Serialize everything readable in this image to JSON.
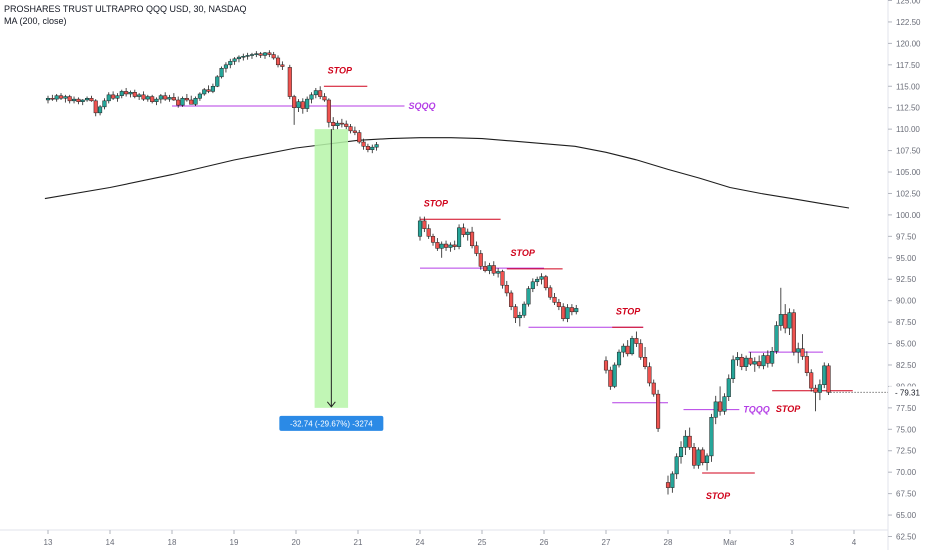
{
  "header": {
    "symbol_line": "PROSHARES TRUST ULTRAPRO QQQ USD, 30, NASDAQ",
    "indicator_line": "MA (200, close)"
  },
  "chart_data": {
    "type": "candlestick",
    "symbol": "PROSHARES TRUST ULTRAPRO QQQ USD",
    "interval": "30",
    "exchange": "NASDAQ",
    "indicator": "MA (200, close)",
    "ylim": [
      62.5,
      125.0
    ],
    "y_ticks": [
      "125.00",
      "122.50",
      "120.00",
      "117.50",
      "115.00",
      "112.50",
      "110.00",
      "107.50",
      "105.00",
      "102.50",
      "100.00",
      "97.50",
      "95.00",
      "92.50",
      "90.00",
      "87.50",
      "85.00",
      "82.50",
      "80.00",
      "77.50",
      "75.00",
      "72.50",
      "70.00",
      "67.50",
      "65.00",
      "62.50"
    ],
    "x_ticks": [
      "13",
      "14",
      "18",
      "19",
      "20",
      "21",
      "24",
      "25",
      "26",
      "27",
      "28",
      "Mar",
      "3",
      "4"
    ],
    "x_tick_pos": [
      0,
      1,
      2,
      3,
      4,
      5,
      6,
      7,
      8,
      9,
      10,
      11,
      12,
      13
    ],
    "grid": false,
    "colors": {
      "up": "#26a69a",
      "down": "#ef5350",
      "ma": "#1e1e1e",
      "stop": "#d0021b",
      "entry": "#b43ee6",
      "measure_fill": "#b6f5a8",
      "measure_label_bg": "#2b8ae6",
      "last_price_bg": "#ffffff"
    },
    "last_price": "79.31",
    "candles": [
      [
        0.0,
        113.4,
        113.9,
        113.0,
        113.6
      ],
      [
        0.07,
        113.6,
        114.0,
        113.3,
        113.5
      ],
      [
        0.14,
        113.5,
        114.1,
        113.2,
        113.9
      ],
      [
        0.21,
        113.9,
        114.2,
        113.4,
        113.6
      ],
      [
        0.28,
        113.6,
        114.0,
        113.1,
        113.8
      ],
      [
        0.35,
        113.8,
        114.0,
        113.0,
        113.3
      ],
      [
        0.42,
        113.3,
        113.8,
        113.0,
        113.5
      ],
      [
        0.49,
        113.5,
        113.7,
        112.9,
        113.2
      ],
      [
        0.56,
        113.2,
        113.5,
        112.8,
        113.4
      ],
      [
        0.63,
        113.4,
        113.8,
        113.2,
        113.6
      ],
      [
        0.7,
        113.6,
        113.9,
        113.2,
        113.3
      ],
      [
        0.77,
        113.3,
        113.5,
        111.5,
        111.9
      ],
      [
        0.84,
        111.9,
        112.8,
        111.6,
        112.6
      ],
      [
        0.91,
        112.6,
        113.6,
        112.3,
        113.3
      ],
      [
        0.98,
        113.3,
        114.3,
        113.0,
        114.0
      ],
      [
        1.05,
        114.0,
        114.4,
        113.4,
        113.6
      ],
      [
        1.12,
        113.6,
        114.2,
        113.2,
        113.9
      ],
      [
        1.19,
        113.9,
        114.6,
        113.6,
        114.4
      ],
      [
        1.26,
        114.4,
        114.8,
        113.8,
        114.1
      ],
      [
        1.33,
        114.1,
        114.5,
        113.7,
        114.3
      ],
      [
        1.4,
        114.3,
        114.6,
        113.6,
        113.8
      ],
      [
        1.47,
        113.8,
        114.2,
        113.4,
        114.0
      ],
      [
        1.54,
        114.0,
        114.4,
        113.3,
        113.5
      ],
      [
        1.61,
        113.5,
        114.0,
        113.2,
        113.8
      ],
      [
        1.68,
        113.8,
        114.0,
        113.0,
        113.2
      ],
      [
        1.75,
        113.2,
        113.7,
        112.8,
        113.5
      ],
      [
        1.82,
        113.5,
        114.1,
        113.0,
        113.9
      ],
      [
        1.89,
        113.9,
        114.3,
        113.3,
        113.5
      ],
      [
        1.96,
        113.5,
        114.0,
        113.2,
        113.7
      ],
      [
        2.03,
        113.7,
        114.2,
        113.3,
        113.4
      ],
      [
        2.1,
        113.4,
        113.8,
        112.5,
        112.8
      ],
      [
        2.17,
        112.8,
        113.8,
        112.6,
        113.6
      ],
      [
        2.24,
        113.6,
        114.1,
        113.2,
        113.4
      ],
      [
        2.31,
        113.4,
        113.9,
        112.9,
        112.9
      ],
      [
        2.38,
        112.9,
        113.8,
        112.7,
        113.6
      ],
      [
        2.45,
        113.6,
        114.3,
        113.3,
        114.1
      ],
      [
        2.52,
        114.1,
        114.8,
        113.9,
        114.6
      ],
      [
        2.59,
        114.6,
        115.1,
        114.2,
        114.4
      ],
      [
        2.66,
        114.4,
        115.3,
        114.2,
        115.0
      ],
      [
        2.73,
        115.0,
        116.3,
        114.9,
        116.1
      ],
      [
        2.8,
        116.1,
        117.3,
        115.9,
        117.1
      ],
      [
        2.87,
        117.1,
        117.8,
        116.6,
        117.5
      ],
      [
        2.94,
        117.5,
        118.2,
        117.1,
        117.9
      ],
      [
        3.01,
        117.9,
        118.4,
        117.5,
        118.2
      ],
      [
        3.08,
        118.2,
        118.6,
        117.8,
        118.4
      ],
      [
        3.15,
        118.4,
        118.8,
        118.0,
        118.5
      ],
      [
        3.22,
        118.5,
        118.9,
        118.1,
        118.6
      ],
      [
        3.29,
        118.6,
        118.9,
        118.2,
        118.7
      ],
      [
        3.36,
        118.7,
        119.1,
        118.4,
        118.8
      ],
      [
        3.43,
        118.8,
        119.0,
        118.3,
        118.6
      ],
      [
        3.5,
        118.6,
        119.0,
        118.2,
        118.9
      ],
      [
        3.57,
        118.9,
        119.2,
        118.4,
        118.7
      ],
      [
        3.64,
        118.7,
        119.0,
        118.1,
        118.3
      ],
      [
        3.71,
        118.3,
        118.6,
        117.2,
        117.5
      ],
      [
        3.78,
        117.5,
        117.9,
        116.9,
        117.3
      ],
      [
        3.9,
        117.2,
        117.5,
        113.5,
        113.8
      ],
      [
        3.97,
        113.8,
        114.0,
        110.5,
        112.5
      ],
      [
        4.04,
        112.5,
        113.5,
        112.0,
        113.2
      ],
      [
        4.11,
        113.2,
        113.6,
        111.8,
        112.4
      ],
      [
        4.18,
        112.4,
        113.8,
        112.0,
        113.5
      ],
      [
        4.25,
        113.5,
        114.3,
        113.0,
        114.0
      ],
      [
        4.32,
        114.0,
        114.8,
        113.6,
        114.5
      ],
      [
        4.39,
        114.5,
        115.0,
        113.5,
        113.8
      ],
      [
        4.46,
        113.8,
        114.2,
        113.2,
        113.4
      ],
      [
        4.53,
        113.4,
        113.6,
        110.2,
        110.8
      ],
      [
        4.6,
        110.8,
        111.4,
        109.9,
        110.4
      ],
      [
        4.67,
        110.4,
        111.0,
        110.0,
        110.7
      ],
      [
        4.74,
        110.7,
        111.2,
        110.2,
        110.6
      ],
      [
        4.81,
        110.6,
        111.0,
        110.0,
        110.3
      ],
      [
        4.88,
        110.3,
        110.6,
        109.5,
        109.8
      ],
      [
        4.95,
        109.8,
        110.3,
        109.3,
        109.6
      ],
      [
        5.02,
        109.6,
        109.9,
        108.3,
        108.5
      ],
      [
        5.09,
        108.5,
        108.9,
        107.6,
        108.0
      ],
      [
        5.16,
        108.0,
        108.3,
        107.3,
        107.6
      ],
      [
        5.23,
        107.6,
        108.2,
        107.2,
        107.9
      ],
      [
        5.3,
        107.9,
        108.5,
        107.5,
        108.2
      ],
      [
        6.0,
        97.5,
        99.8,
        97.0,
        99.3
      ],
      [
        6.07,
        99.3,
        99.8,
        98.0,
        98.4
      ],
      [
        6.14,
        98.4,
        98.9,
        97.2,
        97.5
      ],
      [
        6.21,
        97.5,
        97.8,
        96.4,
        96.8
      ],
      [
        6.28,
        96.8,
        97.3,
        95.8,
        96.1
      ],
      [
        6.35,
        96.1,
        96.9,
        95.0,
        96.6
      ],
      [
        6.42,
        96.6,
        97.0,
        95.8,
        96.2
      ],
      [
        6.49,
        96.2,
        96.8,
        95.7,
        96.5
      ],
      [
        6.56,
        96.5,
        97.0,
        95.9,
        96.3
      ],
      [
        6.63,
        96.3,
        98.9,
        96.0,
        98.5
      ],
      [
        6.7,
        98.5,
        99.0,
        97.4,
        97.7
      ],
      [
        6.77,
        97.7,
        98.4,
        97.0,
        98.0
      ],
      [
        6.84,
        98.0,
        98.6,
        96.1,
        96.4
      ],
      [
        6.91,
        96.4,
        96.9,
        95.2,
        95.5
      ],
      [
        6.98,
        95.5,
        95.9,
        93.6,
        94.0
      ],
      [
        7.05,
        94.0,
        94.6,
        93.3,
        93.5
      ],
      [
        7.12,
        93.5,
        94.4,
        93.1,
        94.1
      ],
      [
        7.19,
        94.1,
        94.6,
        92.9,
        93.2
      ],
      [
        7.26,
        93.2,
        93.8,
        92.7,
        93.4
      ],
      [
        7.33,
        93.4,
        93.6,
        91.4,
        91.8
      ],
      [
        7.4,
        91.8,
        92.3,
        90.5,
        90.9
      ],
      [
        7.47,
        90.9,
        91.2,
        88.9,
        89.3
      ],
      [
        7.54,
        89.3,
        89.6,
        87.4,
        88.0
      ],
      [
        7.61,
        88.0,
        88.7,
        87.0,
        88.3
      ],
      [
        7.68,
        88.3,
        89.9,
        88.0,
        89.6
      ],
      [
        7.75,
        89.6,
        91.7,
        89.3,
        91.4
      ],
      [
        7.82,
        91.4,
        92.6,
        91.0,
        92.2
      ],
      [
        7.89,
        92.2,
        92.8,
        91.7,
        92.5
      ],
      [
        7.96,
        92.5,
        93.2,
        91.9,
        92.8
      ],
      [
        8.03,
        92.8,
        93.0,
        91.2,
        91.5
      ],
      [
        8.1,
        91.5,
        91.8,
        90.1,
        90.4
      ],
      [
        8.17,
        90.4,
        90.9,
        89.5,
        89.8
      ],
      [
        8.24,
        89.8,
        90.2,
        88.9,
        89.3
      ],
      [
        8.31,
        89.3,
        89.7,
        87.6,
        87.9
      ],
      [
        8.38,
        87.9,
        89.6,
        87.5,
        89.2
      ],
      [
        8.45,
        89.2,
        89.6,
        88.3,
        88.7
      ],
      [
        8.52,
        88.7,
        89.5,
        88.4,
        89.1
      ],
      [
        9.0,
        83.0,
        83.5,
        81.5,
        81.9
      ],
      [
        9.07,
        81.9,
        82.3,
        79.6,
        80.0
      ],
      [
        9.14,
        80.0,
        82.8,
        79.8,
        82.5
      ],
      [
        9.21,
        82.5,
        84.3,
        82.2,
        84.0
      ],
      [
        9.28,
        84.0,
        85.0,
        83.4,
        84.7
      ],
      [
        9.35,
        84.7,
        85.4,
        83.5,
        83.8
      ],
      [
        9.42,
        83.8,
        85.9,
        83.6,
        85.6
      ],
      [
        9.49,
        85.6,
        86.4,
        84.6,
        85.0
      ],
      [
        9.56,
        85.0,
        85.5,
        83.1,
        83.4
      ],
      [
        9.63,
        83.4,
        84.6,
        82.0,
        82.3
      ],
      [
        9.7,
        82.3,
        82.8,
        80.0,
        80.4
      ],
      [
        9.77,
        80.4,
        80.8,
        78.8,
        79.1
      ],
      [
        9.84,
        79.1,
        79.6,
        74.7,
        75.1
      ],
      [
        10.0,
        68.8,
        69.6,
        67.4,
        68.2
      ],
      [
        10.07,
        68.2,
        70.1,
        67.6,
        69.8
      ],
      [
        10.14,
        69.8,
        72.2,
        69.2,
        71.8
      ],
      [
        10.21,
        71.8,
        73.6,
        71.0,
        72.9
      ],
      [
        10.28,
        72.9,
        74.9,
        72.0,
        74.2
      ],
      [
        10.35,
        74.2,
        75.2,
        72.6,
        72.9
      ],
      [
        10.42,
        72.9,
        73.4,
        70.4,
        70.8
      ],
      [
        10.49,
        70.8,
        72.9,
        70.4,
        72.6
      ],
      [
        10.56,
        72.6,
        72.9,
        70.8,
        71.1
      ],
      [
        10.63,
        71.1,
        72.2,
        70.2,
        71.9
      ],
      [
        10.7,
        71.9,
        76.8,
        71.2,
        76.4
      ],
      [
        10.77,
        76.4,
        78.9,
        75.6,
        78.2
      ],
      [
        10.84,
        78.2,
        80.0,
        76.6,
        77.1
      ],
      [
        10.91,
        77.1,
        79.2,
        76.7,
        78.8
      ],
      [
        10.98,
        78.8,
        81.4,
        78.3,
        80.9
      ],
      [
        11.05,
        80.9,
        83.6,
        80.4,
        83.1
      ],
      [
        11.12,
        83.1,
        84.0,
        82.4,
        83.4
      ],
      [
        11.19,
        83.4,
        83.8,
        81.9,
        82.3
      ],
      [
        11.26,
        82.3,
        83.6,
        81.8,
        83.3
      ],
      [
        11.33,
        83.3,
        84.0,
        82.4,
        82.6
      ],
      [
        11.4,
        82.6,
        83.4,
        81.7,
        82.9
      ],
      [
        11.47,
        82.9,
        83.6,
        82.1,
        82.4
      ],
      [
        11.54,
        82.4,
        83.9,
        82.0,
        83.6
      ],
      [
        11.61,
        83.6,
        84.2,
        82.2,
        82.7
      ],
      [
        11.68,
        82.7,
        84.6,
        82.3,
        84.1
      ],
      [
        11.75,
        84.1,
        87.6,
        83.8,
        87.1
      ],
      [
        11.82,
        87.1,
        91.5,
        86.5,
        88.4
      ],
      [
        11.89,
        88.4,
        89.6,
        86.2,
        86.8
      ],
      [
        11.96,
        86.8,
        89.1,
        86.0,
        88.6
      ],
      [
        12.03,
        88.6,
        89.0,
        83.6,
        84.0
      ],
      [
        12.1,
        84.0,
        85.1,
        82.7,
        84.4
      ],
      [
        12.17,
        84.4,
        86.1,
        83.1,
        83.5
      ],
      [
        12.24,
        83.5,
        84.1,
        81.2,
        81.6
      ],
      [
        12.31,
        81.6,
        82.0,
        79.4,
        79.8
      ],
      [
        12.38,
        79.8,
        80.2,
        77.1,
        79.3
      ],
      [
        12.45,
        79.3,
        80.8,
        78.4,
        80.2
      ],
      [
        12.52,
        80.2,
        82.8,
        79.8,
        82.4
      ],
      [
        12.59,
        82.4,
        82.7,
        79.0,
        79.31
      ]
    ],
    "ma_200": [
      [
        -0.05,
        101.9
      ],
      [
        1.0,
        103.2
      ],
      [
        2.0,
        104.7
      ],
      [
        3.0,
        106.4
      ],
      [
        4.0,
        107.8
      ],
      [
        5.0,
        108.7
      ],
      [
        5.5,
        108.9
      ],
      [
        6.0,
        109.0
      ],
      [
        6.5,
        109.0
      ],
      [
        7.0,
        108.9
      ],
      [
        7.5,
        108.6
      ],
      [
        8.0,
        108.3
      ],
      [
        8.5,
        108.0
      ],
      [
        9.0,
        107.3
      ],
      [
        9.5,
        106.4
      ],
      [
        10.0,
        105.3
      ],
      [
        10.5,
        104.3
      ],
      [
        11.0,
        103.2
      ],
      [
        11.5,
        102.5
      ],
      [
        12.0,
        101.9
      ],
      [
        12.5,
        101.3
      ],
      [
        12.92,
        100.8
      ]
    ],
    "annotations": [
      {
        "type": "stop",
        "label": "STOP",
        "y": 115.0,
        "x0": 4.45,
        "x1": 5.15
      },
      {
        "type": "entry",
        "label": "SQQQ",
        "y": 112.7,
        "x0": 2.0,
        "x1": 5.75
      },
      {
        "type": "stop",
        "label": "STOP",
        "y": 99.5,
        "x0": 6.0,
        "x1": 7.3
      },
      {
        "type": "entry",
        "label": "",
        "y": 93.8,
        "x0": 6.0,
        "x1": 8.0
      },
      {
        "type": "stop",
        "label": "STOP",
        "y": 93.7,
        "x0": 7.4,
        "x1": 8.3
      },
      {
        "type": "entry",
        "label": "",
        "y": 86.9,
        "x0": 7.75,
        "x1": 9.6
      },
      {
        "type": "stop",
        "label": "STOP",
        "y": 86.9,
        "x0": 9.1,
        "x1": 9.6
      },
      {
        "type": "entry",
        "label": "",
        "y": 78.1,
        "x0": 9.1,
        "x1": 10.0
      },
      {
        "type": "entry",
        "label": "TQQQ",
        "y": 77.3,
        "x0": 10.25,
        "x1": 11.15
      },
      {
        "type": "stop",
        "label": "STOP",
        "y": 69.9,
        "x0": 10.55,
        "x1": 11.4
      },
      {
        "type": "entry",
        "label": "",
        "y": 84.0,
        "x0": 11.3,
        "x1": 12.5
      },
      {
        "type": "stop",
        "label": "STOP",
        "y": 79.5,
        "x0": 11.68,
        "x1": 12.98
      }
    ],
    "stop_label_offsets": [
      [
        0.0,
        1.5
      ],
      [
        0.0,
        1.5
      ],
      [
        0.0,
        1.5
      ],
      [
        0.0,
        1.5
      ],
      [
        0.0,
        -3.0
      ],
      [
        0.0,
        -2.5
      ]
    ],
    "measure": {
      "x0": 4.3,
      "x1": 4.84,
      "y_top": 110.0,
      "y_bottom": 77.5,
      "label": "-32.74 (-29.67%) -3274"
    }
  }
}
